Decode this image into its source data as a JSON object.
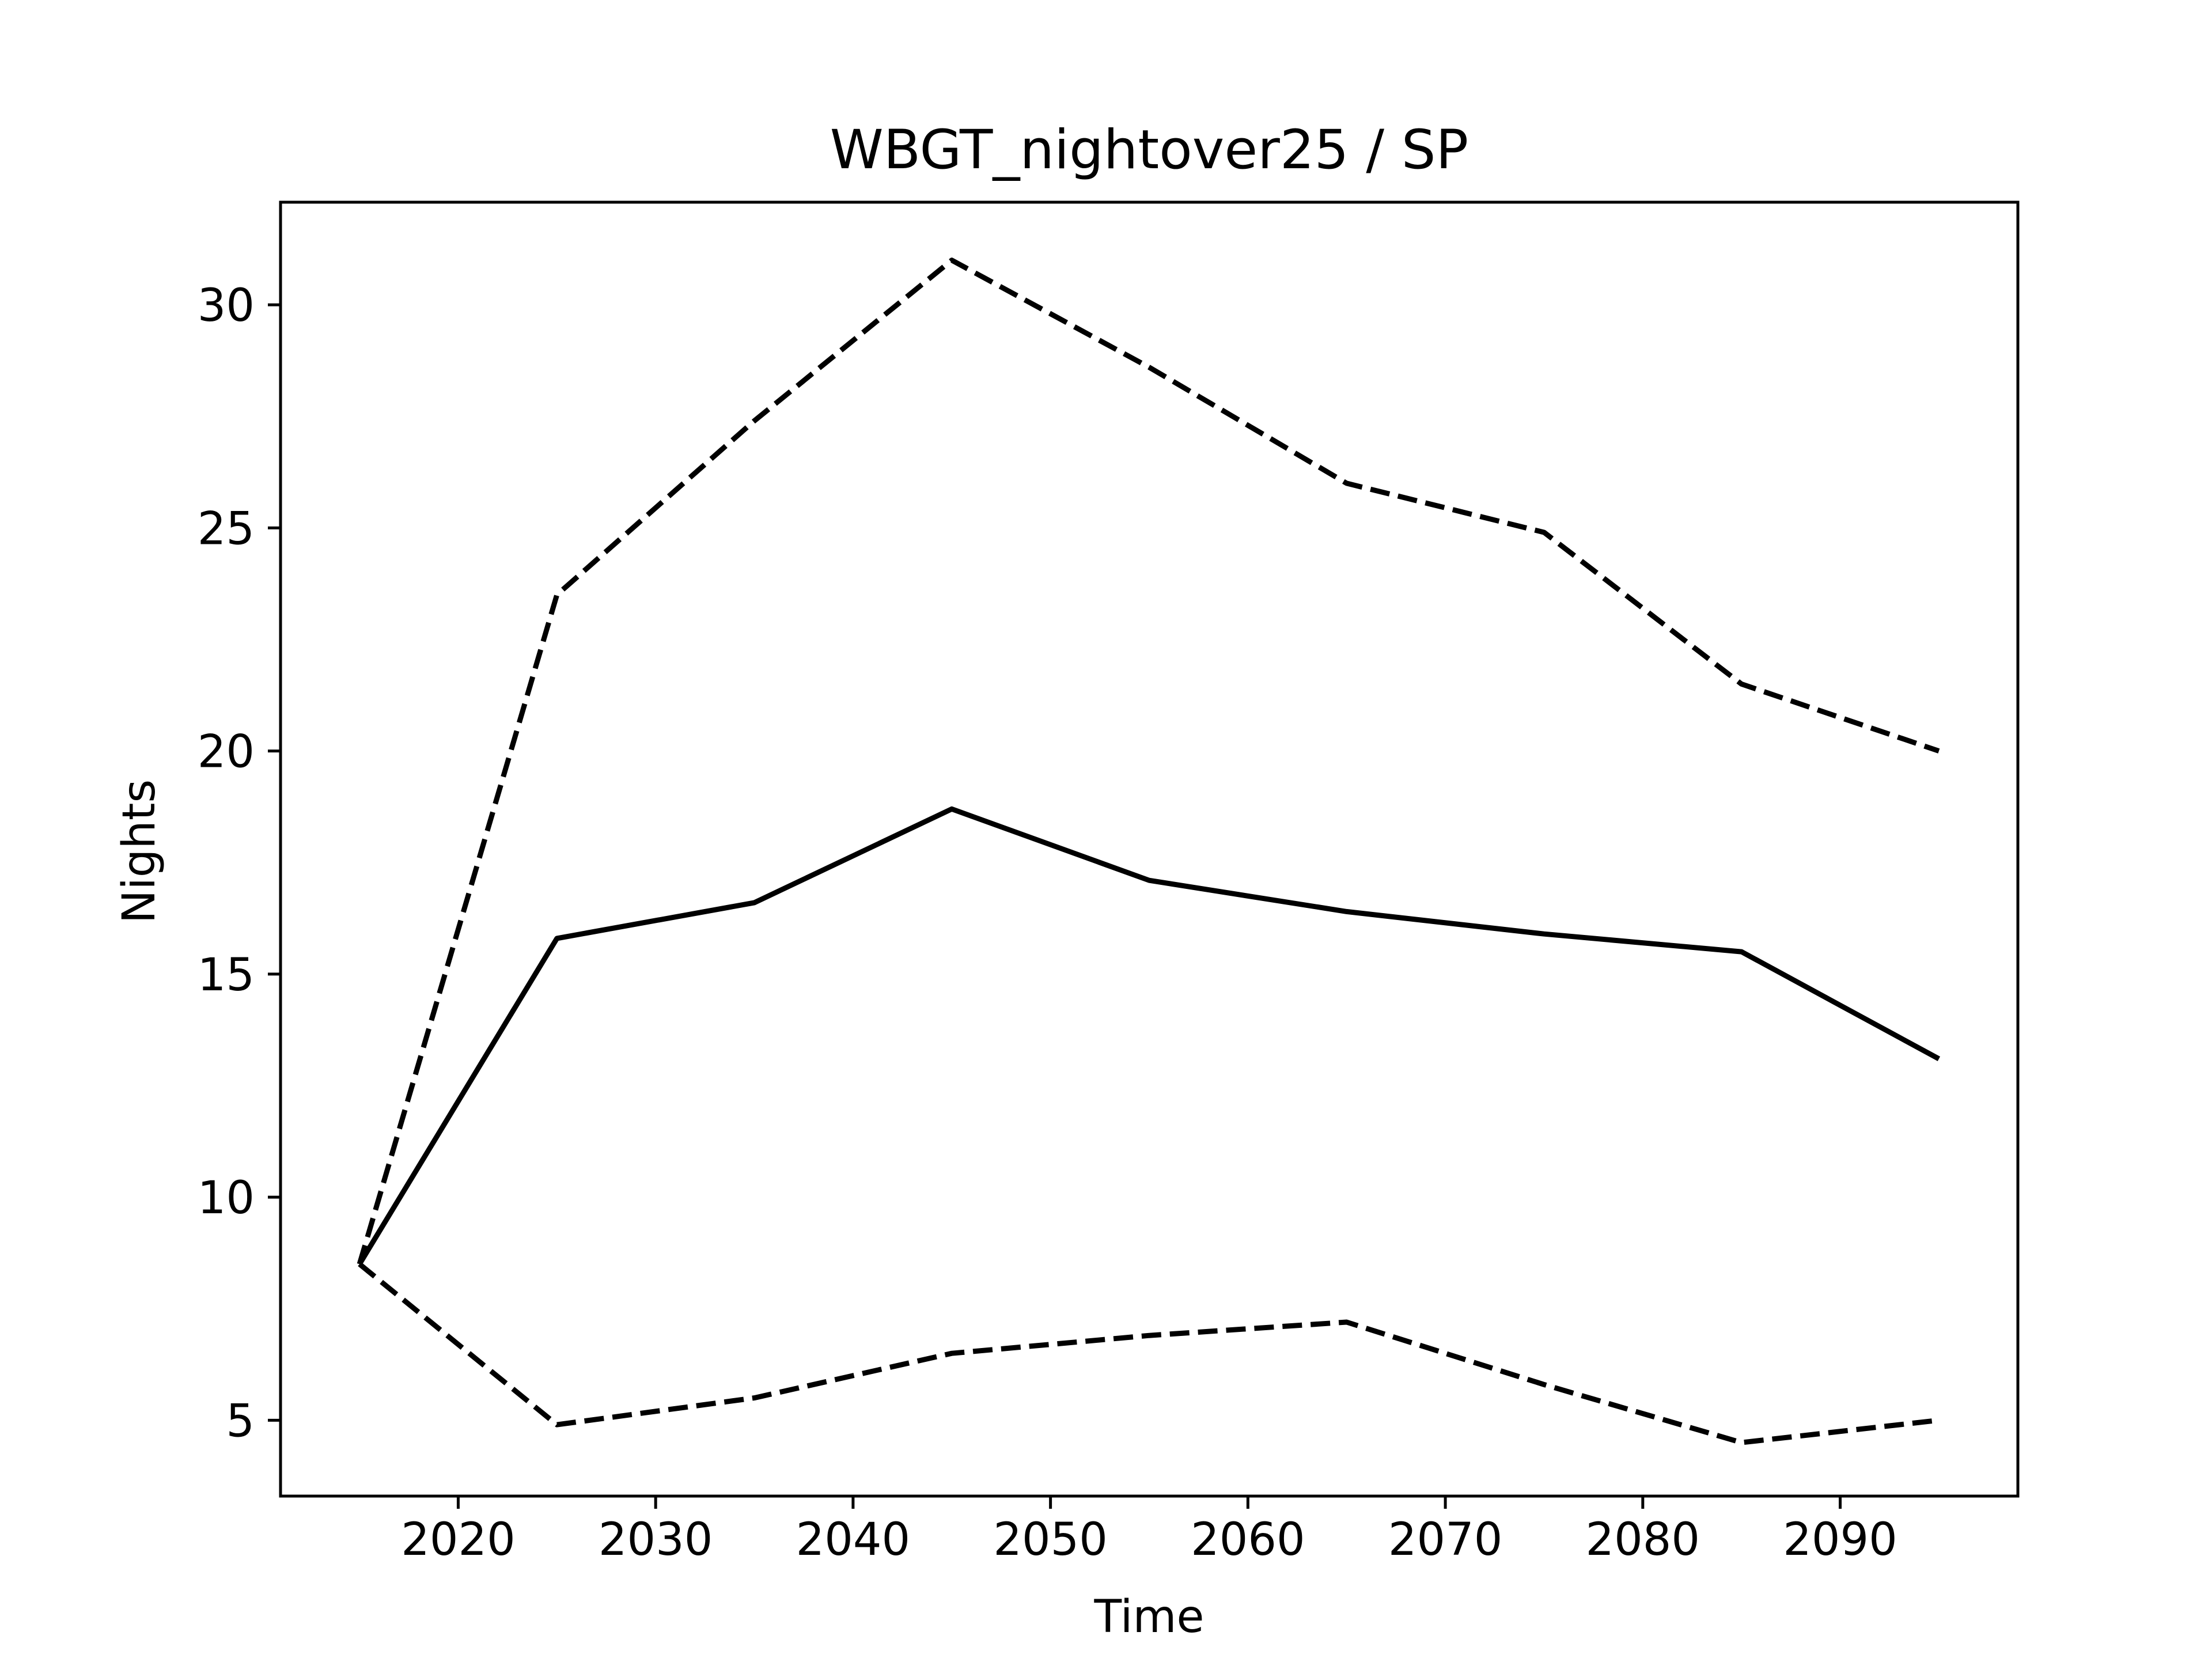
{
  "chart_data": {
    "type": "line",
    "title": "WBGT_nightover25 / SP",
    "xlabel": "Time",
    "ylabel": "Nights",
    "xlim": [
      2011,
      2099
    ],
    "ylim": [
      3.3,
      32.3
    ],
    "xticks": [
      2020,
      2030,
      2040,
      2050,
      2060,
      2070,
      2080,
      2090
    ],
    "yticks": [
      5,
      10,
      15,
      20,
      25,
      30
    ],
    "grid": false,
    "legend": "none",
    "series": [
      {
        "style": "solid",
        "color": "#000000",
        "x": [
          2015,
          2025,
          2035,
          2045,
          2055,
          2065,
          2075,
          2085,
          2095
        ],
        "y": [
          8.5,
          15.8,
          16.6,
          18.7,
          17.1,
          16.4,
          15.9,
          15.5,
          13.1
        ]
      },
      {
        "style": "dashed",
        "color": "#000000",
        "x": [
          2015,
          2025,
          2035,
          2045,
          2055,
          2065,
          2075,
          2085,
          2095
        ],
        "y": [
          8.5,
          23.5,
          27.4,
          31.0,
          28.6,
          26.0,
          24.9,
          21.5,
          20.0
        ]
      },
      {
        "style": "dashed",
        "color": "#000000",
        "x": [
          2015,
          2025,
          2035,
          2045,
          2055,
          2065,
          2075,
          2085,
          2095
        ],
        "y": [
          8.5,
          4.9,
          5.5,
          6.5,
          6.9,
          7.2,
          5.8,
          4.5,
          5.0
        ]
      }
    ]
  }
}
